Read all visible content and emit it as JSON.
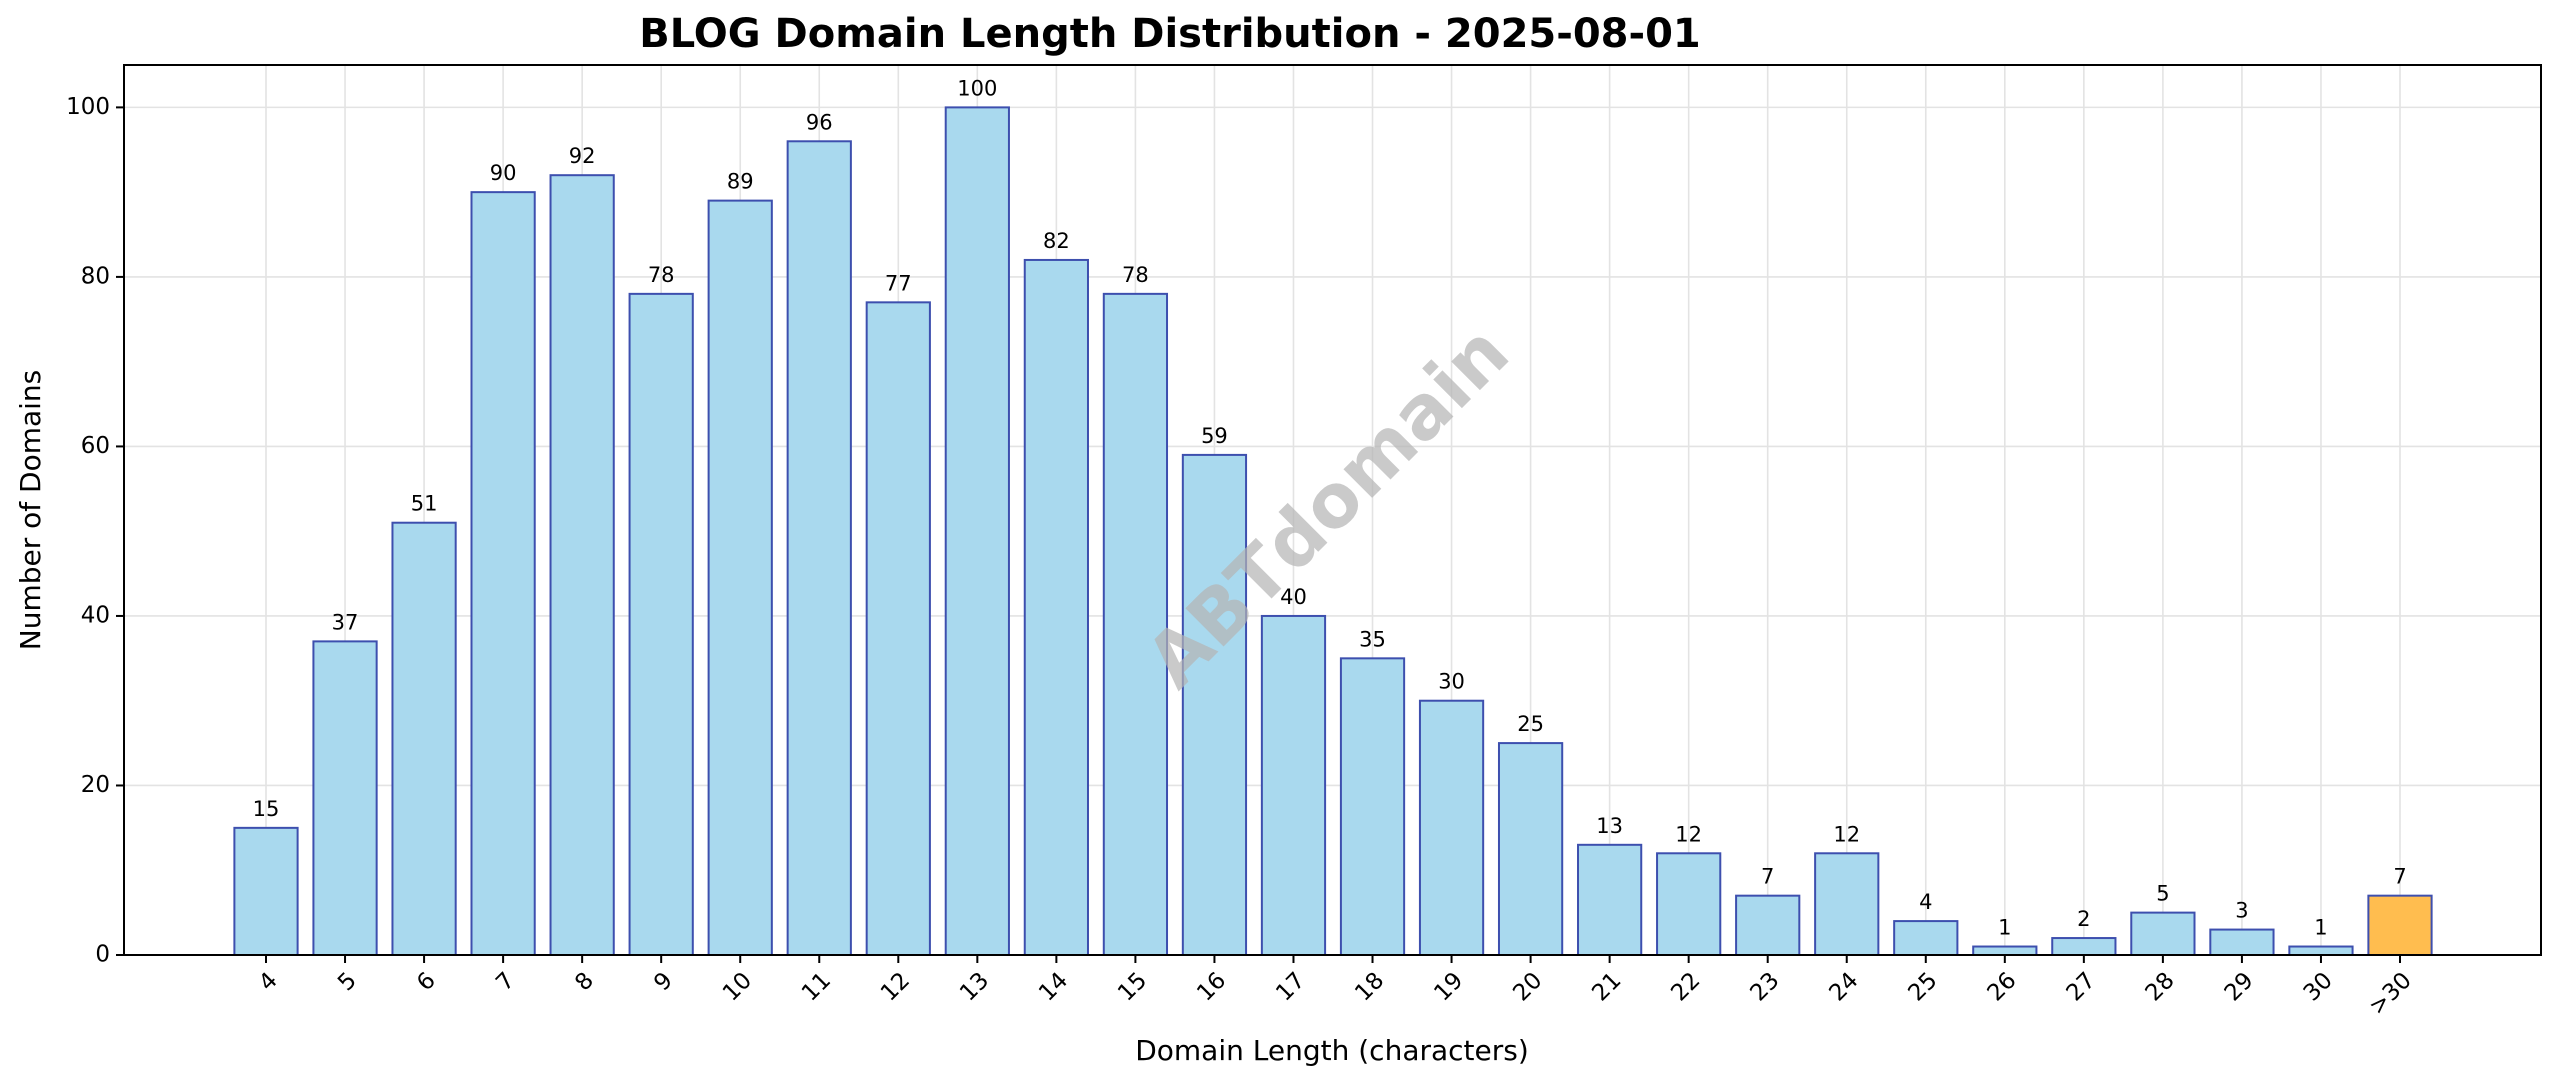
{
  "chart_data": {
    "type": "bar",
    "title": "BLOG Domain Length Distribution - 2025-08-01",
    "x_label": "Domain Length (characters)",
    "y_label": "Number of Domains",
    "watermark": "ABTdomain",
    "categories": [
      "4",
      "5",
      "6",
      "7",
      "8",
      "9",
      "10",
      "11",
      "12",
      "13",
      "14",
      "15",
      "16",
      "17",
      "18",
      "19",
      "20",
      "21",
      "22",
      "23",
      "24",
      "25",
      "26",
      "27",
      "28",
      "29",
      "30",
      ">30"
    ],
    "values": [
      15,
      37,
      51,
      90,
      92,
      78,
      89,
      96,
      77,
      100,
      82,
      78,
      59,
      40,
      35,
      30,
      25,
      13,
      12,
      7,
      12,
      4,
      1,
      2,
      5,
      3,
      1,
      7
    ],
    "colors": [
      "#a9d9ee",
      "#a9d9ee",
      "#a9d9ee",
      "#a9d9ee",
      "#a9d9ee",
      "#a9d9ee",
      "#a9d9ee",
      "#a9d9ee",
      "#a9d9ee",
      "#a9d9ee",
      "#a9d9ee",
      "#a9d9ee",
      "#a9d9ee",
      "#a9d9ee",
      "#a9d9ee",
      "#a9d9ee",
      "#a9d9ee",
      "#a9d9ee",
      "#a9d9ee",
      "#a9d9ee",
      "#a9d9ee",
      "#a9d9ee",
      "#a9d9ee",
      "#a9d9ee",
      "#a9d9ee",
      "#a9d9ee",
      "#a9d9ee",
      "#ffbd4f"
    ],
    "edge_color": "#3d4fae",
    "ylim": [
      0,
      105
    ],
    "yticks": [
      0,
      20,
      40,
      60,
      80,
      100
    ],
    "grid": true
  }
}
